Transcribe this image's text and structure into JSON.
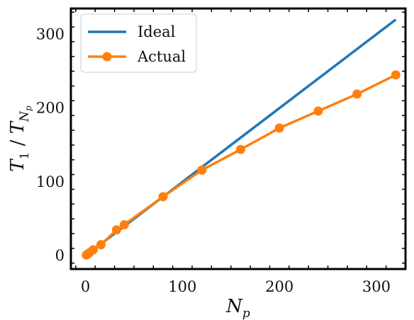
{
  "chart_data": {
    "type": "line",
    "xlabel": {
      "base": "N",
      "sub": "p"
    },
    "ylabel": {
      "main": "T",
      "main_sub": "1",
      "sep": " / ",
      "den": "T",
      "den_sub1": "N",
      "den_sub2": "p"
    },
    "xlim": [
      -15,
      330
    ],
    "ylim": [
      -18,
      335
    ],
    "xticks": [
      0,
      100,
      200,
      300
    ],
    "yticks": [
      0,
      100,
      200,
      300
    ],
    "grid": false,
    "legend_position": "top-left",
    "series": [
      {
        "name": "Ideal",
        "color": "#1f77b4",
        "marker": "none",
        "x": [
          1,
          320
        ],
        "y": [
          1,
          320
        ]
      },
      {
        "name": "Actual",
        "color": "#ff7f0e",
        "marker": "circle",
        "x": [
          1,
          2,
          4,
          8,
          16,
          32,
          40,
          80,
          120,
          160,
          200,
          240,
          280,
          320
        ],
        "y": [
          1,
          2,
          4,
          8,
          15,
          35,
          42,
          80,
          116,
          144,
          173,
          196,
          219,
          245
        ]
      }
    ]
  }
}
